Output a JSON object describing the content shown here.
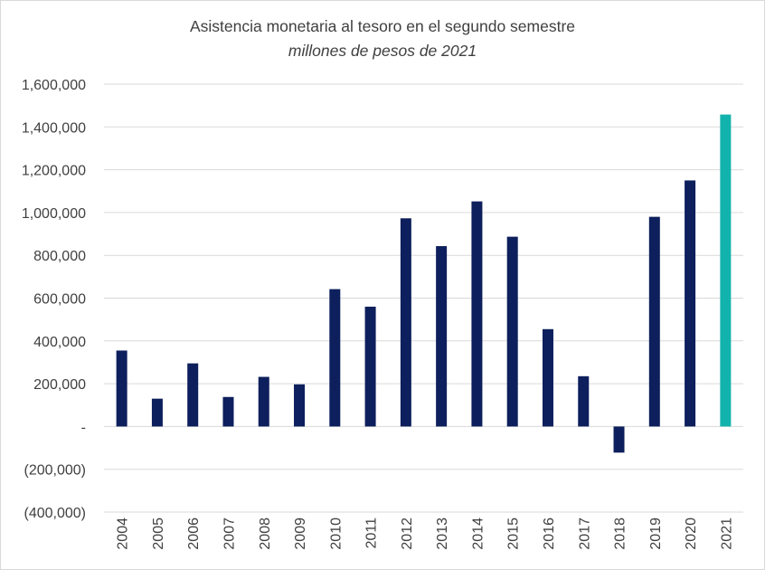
{
  "chart_data": {
    "type": "bar",
    "title": "Asistencia monetaria al tesoro en el segundo semestre",
    "subtitle": "millones de pesos de 2021",
    "xlabel": "",
    "ylabel": "",
    "ylim": [
      -400000,
      1600000
    ],
    "y_ticks": [
      1600000,
      1400000,
      1200000,
      1000000,
      800000,
      600000,
      400000,
      200000,
      0,
      -200000,
      -400000
    ],
    "y_tick_labels": [
      "1,600,000",
      "1,400,000",
      "1,200,000",
      "1,000,000",
      "800,000",
      "600,000",
      "400,000",
      "200,000",
      "-",
      "(200,000)",
      "(400,000)"
    ],
    "categories": [
      "2004",
      "2005",
      "2006",
      "2007",
      "2008",
      "2009",
      "2010",
      "2011",
      "2012",
      "2013",
      "2014",
      "2015",
      "2016",
      "2017",
      "2018",
      "2019",
      "2020",
      "2021"
    ],
    "values": [
      355000,
      130000,
      295000,
      138000,
      232000,
      197000,
      642000,
      560000,
      973000,
      843000,
      1052000,
      887000,
      455000,
      235000,
      -122000,
      980000,
      1150000,
      1458000
    ],
    "bar_color": "#0d1f5c",
    "highlight_color": "#12b3ac",
    "highlight_category": "2021",
    "grid": true,
    "legend": "none"
  }
}
